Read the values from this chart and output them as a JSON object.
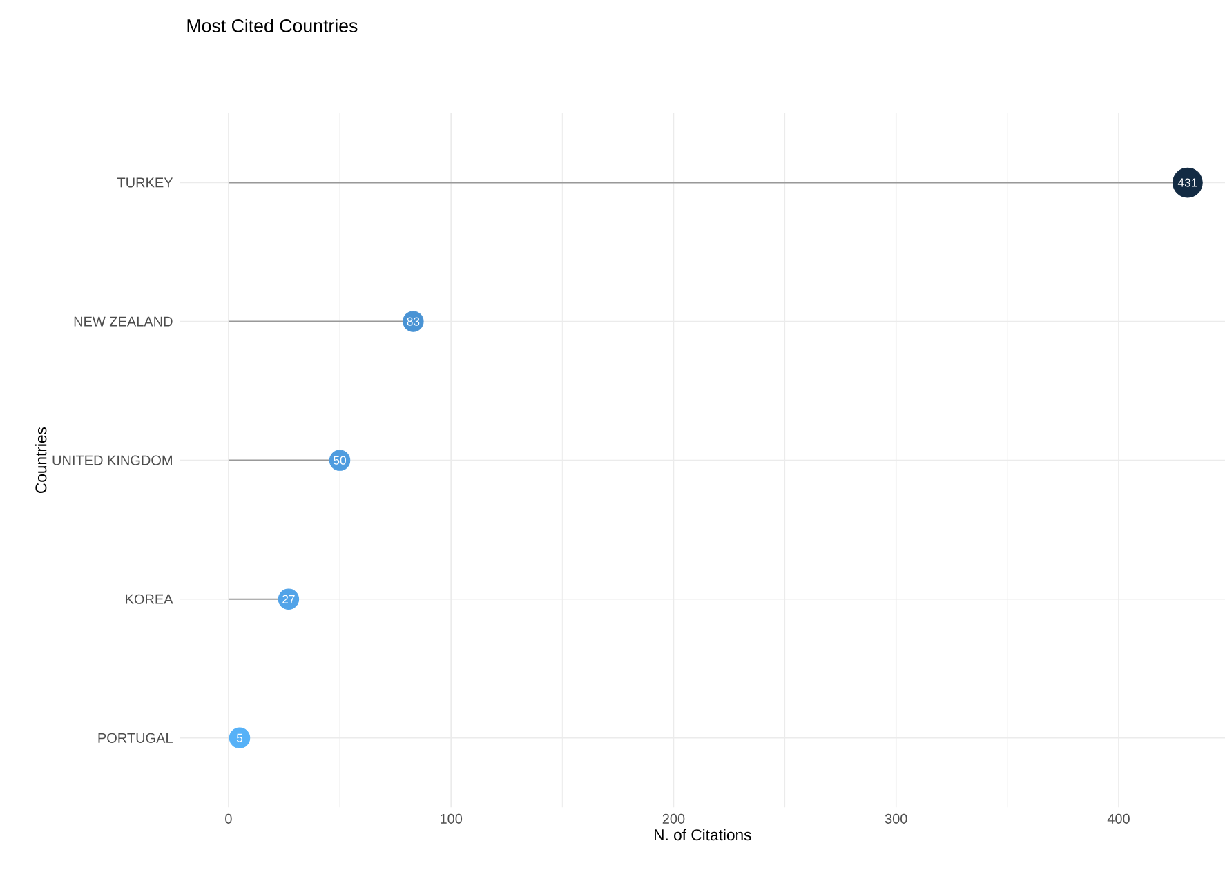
{
  "chart_data": {
    "type": "lollipop",
    "orientation": "horizontal",
    "title": "Most Cited Countries",
    "xlabel": "N. of Citations",
    "ylabel": "Countries",
    "categories": [
      "TURKEY",
      "NEW ZEALAND",
      "UNITED KINGDOM",
      "KOREA",
      "PORTUGAL"
    ],
    "values": [
      431,
      83,
      50,
      27,
      5
    ],
    "colors": [
      "#132b43",
      "#4993d4",
      "#4f9cdf",
      "#52a3e8",
      "#56b1f7"
    ],
    "xlim": [
      -22,
      448
    ],
    "xticks": [
      0,
      100,
      200,
      300,
      400
    ],
    "grid": true,
    "data_labels": true,
    "marker": "circle"
  }
}
